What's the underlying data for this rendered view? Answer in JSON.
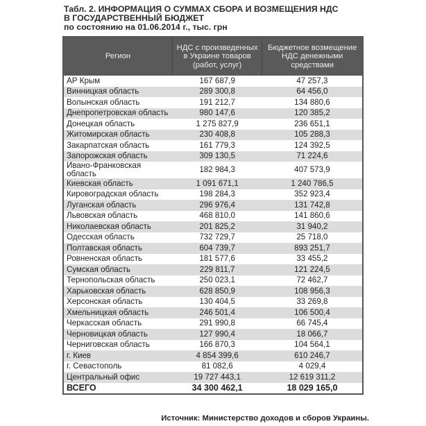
{
  "title": {
    "line1": "Табл. 2. ИНФОРМАЦИЯ О СУММАХ СБОРА И ВОЗМЕЩЕНИЯ НДС",
    "line2": "В ГОСУДАРСТВЕННЫЙ БЮДЖЕТ",
    "line3": "по состоянию на 01.06.2014 г., тыс. грн"
  },
  "headers": [
    "Регион",
    "НДС с произведенных в Украине товаров (работ, услуг)",
    "Бюджетное возмещение НДС денежными средствами"
  ],
  "rows": [
    [
      "АР Крым",
      "167 687,9",
      "47 257,3"
    ],
    [
      "Винницкая область",
      "289 300,8",
      "64 456,0"
    ],
    [
      "Волынская область",
      "191 212,7",
      "134 880,6"
    ],
    [
      "Днепропетровская область",
      "980 147,6",
      "120 385,2"
    ],
    [
      "Донецкая область",
      "1 275 827,9",
      "236 651,1"
    ],
    [
      "Житомирская область",
      "230 408,8",
      "105 288,3"
    ],
    [
      "Закарпатская область",
      "161 779,3",
      "124 392,5"
    ],
    [
      "Запорожская область",
      "309 130,5",
      "71 224,6"
    ],
    [
      "Ивано-Франковская область",
      "182 984,3",
      "407 573,9"
    ],
    [
      "Киевская область",
      "1 091 671,1",
      "1 240 786,5"
    ],
    [
      "Кировоградская область",
      "198 284,3",
      "352 923,4"
    ],
    [
      "Луганская область",
      "296 976,4",
      "131 742,8"
    ],
    [
      "Львовская область",
      "468 810,0",
      "141 860,6"
    ],
    [
      "Николаевская область",
      "201 825,2",
      "31 940,2"
    ],
    [
      "Одесская область",
      "732 729,7",
      "25 718,0"
    ],
    [
      "Полтавская область",
      "604 739,7",
      "893 251,7"
    ],
    [
      "Ровненская область",
      "181 577,6",
      "33 455,2"
    ],
    [
      "Сумская область",
      "229 811,7",
      "121 224,5"
    ],
    [
      "Тернопольская область",
      "250 023,1",
      "72 462,7"
    ],
    [
      "Харьковская область",
      "628 850,9",
      "108 956,3"
    ],
    [
      "Херсонская область",
      "130 404,5",
      "33 269,8"
    ],
    [
      "Хмельницкая область",
      "246 501,4",
      "106 500,4"
    ],
    [
      "Черкасская область",
      "291 990,8",
      "66 745,4"
    ],
    [
      "Черновицкая область",
      "127 990,4",
      "18 066,7"
    ],
    [
      "Черниговская область",
      "166 870,3",
      "104 564,1"
    ],
    [
      "г. Киев",
      "4 854 399,6",
      "610 246,7"
    ],
    [
      "г. Севастополь",
      "81 082,6",
      "4 029,4"
    ],
    [
      "Центральный офис",
      "19 727 443,1",
      "12 619 311,2"
    ]
  ],
  "total": [
    "ВСЕГО",
    "34 300 462,1",
    "18 029 165,0"
  ],
  "source": "Источник: Министерство доходов и сборов Украины.",
  "colors": {
    "header_bg": "#5a5a5a",
    "stripe": "#dcdcdc"
  }
}
